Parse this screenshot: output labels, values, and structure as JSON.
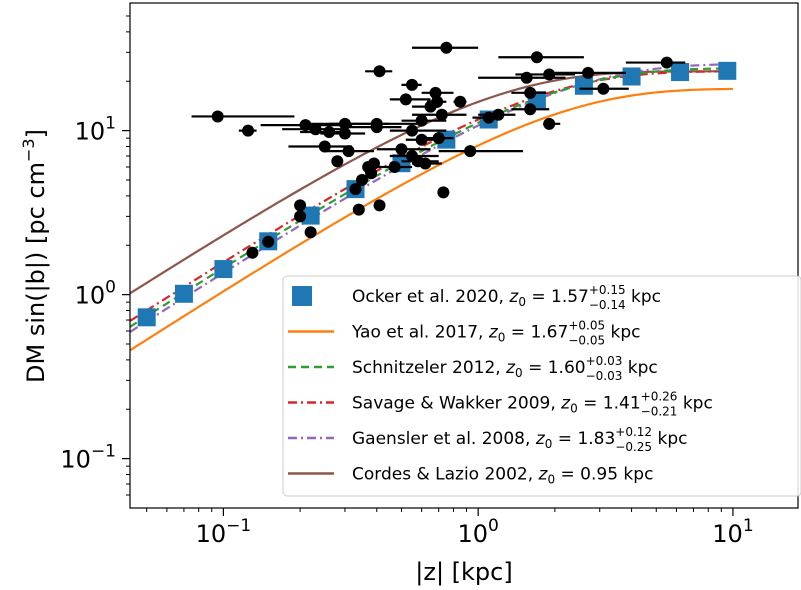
{
  "chart_data": {
    "type": "scatter",
    "title": "",
    "xlabel": "|z| [kpc]",
    "ylabel": "DM sin(|b|) [pc cm",
    "ylabel_sup": "−3",
    "ylabel_close": "]",
    "xscale": "log",
    "yscale": "log",
    "xlim": [
      0.043,
      18
    ],
    "ylim": [
      0.05,
      60
    ],
    "x_ticks": [
      {
        "value": 0.1,
        "base": "10",
        "exp": "−1"
      },
      {
        "value": 1,
        "base": "10",
        "exp": "0"
      },
      {
        "value": 10,
        "base": "10",
        "exp": "1"
      }
    ],
    "y_ticks": [
      {
        "value": 0.1,
        "base": "10",
        "exp": "−1"
      },
      {
        "value": 1,
        "base": "10",
        "exp": "0"
      },
      {
        "value": 10,
        "base": "10",
        "exp": "1"
      }
    ],
    "grid": false,
    "legend_position": "lower-right",
    "colors": {
      "data_points": "#000000",
      "ocker": "#1f77b4",
      "yao": "#ff7f0e",
      "schnitzeler": "#2ca02c",
      "savage": "#d62728",
      "gaensler": "#9467bd",
      "cordes": "#8c564b"
    },
    "series": [
      {
        "key": "ocker",
        "style": "squares",
        "name": "Ocker et al. 2020, ",
        "z0_value": "1.57",
        "sup": "+0.15",
        "sub": "−0.14",
        "unit": " kpc",
        "amplitude": 23.2,
        "z0": 1.57,
        "x_points": [
          0.05,
          0.07,
          0.1,
          0.15,
          0.22,
          0.33,
          0.5,
          0.75,
          1.1,
          1.7,
          2.6,
          4.0,
          6.2,
          9.5
        ]
      },
      {
        "key": "yao",
        "style": "solid",
        "name": "Yao et al. 2017, ",
        "z0_value": "1.67",
        "sup": "+0.05",
        "sub": "−0.05",
        "unit": " kpc",
        "amplitude": 18.0,
        "z0": 1.67
      },
      {
        "key": "schnitzeler",
        "style": "dashed",
        "name": "Schnitzeler 2012, ",
        "z0_value": "1.60",
        "sup": "+0.03",
        "sub": "−0.03",
        "unit": " kpc",
        "amplitude": 24.0,
        "z0": 1.6
      },
      {
        "key": "savage",
        "style": "dashdot",
        "name": "Savage & Wakker 2009, ",
        "z0_value": "1.41",
        "sup": "+0.26",
        "sub": "−0.21",
        "unit": " kpc",
        "amplitude": 23.0,
        "z0": 1.41
      },
      {
        "key": "gaensler",
        "style": "dashdot",
        "name": "Gaensler et al. 2008, ",
        "z0_value": "1.83",
        "sup": "+0.12",
        "sub": "−0.25",
        "unit": " kpc",
        "amplitude": 25.5,
        "z0": 1.83
      },
      {
        "key": "cordes",
        "style": "solid",
        "name": "Cordes & Lazio 2002, ",
        "z0_value": "0.95",
        "sup": "",
        "sub": "",
        "unit": " kpc",
        "amplitude": 23.0,
        "z0": 0.95
      }
    ],
    "data_points": [
      {
        "x": 0.095,
        "y": 12.2,
        "xerr": [
          0.075,
          0.19
        ]
      },
      {
        "x": 0.125,
        "y": 10.0,
        "xerr": [
          0.115,
          0.135
        ]
      },
      {
        "x": 0.21,
        "y": 10.8,
        "xerr": [
          0.14,
          0.32
        ]
      },
      {
        "x": 0.23,
        "y": 10.2,
        "xerr": [
          0.17,
          0.3
        ]
      },
      {
        "x": 0.25,
        "y": 8.0,
        "xerr": [
          0.18,
          0.32
        ]
      },
      {
        "x": 0.26,
        "y": 9.8,
        "xerr": [
          0.2,
          0.3
        ]
      },
      {
        "x": 0.3,
        "y": 11.0,
        "xerr": [
          0.22,
          0.45
        ]
      },
      {
        "x": 0.3,
        "y": 9.6,
        "xerr": [
          0.24,
          0.36
        ]
      },
      {
        "x": 0.31,
        "y": 7.5,
        "xerr": [
          0.25,
          0.39
        ]
      },
      {
        "x": 0.4,
        "y": 11.0,
        "xerr": [
          0.26,
          0.6
        ]
      },
      {
        "x": 0.4,
        "y": 10.5,
        "xerr": [
          0.3,
          0.5
        ]
      },
      {
        "x": 0.28,
        "y": 6.5
      },
      {
        "x": 0.37,
        "y": 6.0
      },
      {
        "x": 0.39,
        "y": 6.3
      },
      {
        "x": 0.38,
        "y": 5.5
      },
      {
        "x": 0.35,
        "y": 5.0
      },
      {
        "x": 0.33,
        "y": 4.4
      },
      {
        "x": 0.34,
        "y": 3.3
      },
      {
        "x": 0.41,
        "y": 3.5
      },
      {
        "x": 0.2,
        "y": 3.5
      },
      {
        "x": 0.2,
        "y": 3.0
      },
      {
        "x": 0.22,
        "y": 2.4
      },
      {
        "x": 0.15,
        "y": 2.1
      },
      {
        "x": 0.13,
        "y": 1.8
      },
      {
        "x": 0.41,
        "y": 23.0,
        "xerr": [
          0.36,
          0.46
        ]
      },
      {
        "x": 0.75,
        "y": 32.0,
        "xerr": [
          0.55,
          1.0
        ]
      },
      {
        "x": 0.55,
        "y": 19.0,
        "xerr": [
          0.5,
          0.6
        ]
      },
      {
        "x": 0.68,
        "y": 17.0,
        "xerr": [
          0.6,
          0.8
        ]
      },
      {
        "x": 0.52,
        "y": 15.5,
        "xerr": [
          0.45,
          0.65
        ]
      },
      {
        "x": 0.69,
        "y": 15.0,
        "xerr": [
          0.63,
          0.75
        ]
      },
      {
        "x": 0.85,
        "y": 15.0,
        "xerr": [
          0.8,
          0.9
        ]
      },
      {
        "x": 0.65,
        "y": 14.0,
        "xerr": [
          0.55,
          0.7
        ]
      },
      {
        "x": 0.72,
        "y": 12.5,
        "xerr": [
          0.55,
          0.9
        ]
      },
      {
        "x": 0.6,
        "y": 11.5,
        "xerr": [
          0.5,
          0.75
        ]
      },
      {
        "x": 0.55,
        "y": 10.0,
        "xerr": [
          0.45,
          0.75
        ]
      },
      {
        "x": 0.6,
        "y": 8.8,
        "xerr": [
          0.52,
          0.7
        ]
      },
      {
        "x": 0.7,
        "y": 9.0,
        "xerr": [
          0.6,
          0.8
        ]
      },
      {
        "x": 0.5,
        "y": 7.7,
        "xerr": [
          0.4,
          0.65
        ]
      },
      {
        "x": 0.55,
        "y": 7.0,
        "xerr": [
          0.45,
          0.7
        ]
      },
      {
        "x": 0.58,
        "y": 6.5,
        "xerr": [
          0.5,
          0.7
        ]
      },
      {
        "x": 0.62,
        "y": 6.3,
        "xerr": [
          0.55,
          0.72
        ]
      },
      {
        "x": 0.47,
        "y": 6.0,
        "xerr": [
          0.4,
          0.55
        ]
      },
      {
        "x": 0.93,
        "y": 7.5,
        "xerr": [
          0.7,
          1.5
        ]
      },
      {
        "x": 0.73,
        "y": 4.2,
        "xerr": [
          0.7,
          0.77
        ]
      },
      {
        "x": 1.1,
        "y": 12.0,
        "xerr": [
          0.95,
          1.25
        ]
      },
      {
        "x": 1.2,
        "y": 12.5,
        "xerr": [
          1.0,
          1.4
        ]
      },
      {
        "x": 1.7,
        "y": 28.0,
        "xerr": [
          1.2,
          2.6
        ]
      },
      {
        "x": 1.55,
        "y": 21.0,
        "xerr": [
          1.0,
          2.2
        ]
      },
      {
        "x": 1.6,
        "y": 17.0,
        "xerr": [
          1.35,
          1.85
        ]
      },
      {
        "x": 1.6,
        "y": 13.5,
        "xerr": [
          1.35,
          1.9
        ]
      },
      {
        "x": 1.9,
        "y": 22.0,
        "xerr": [
          1.4,
          2.4
        ]
      },
      {
        "x": 1.9,
        "y": 11.0,
        "xerr": [
          1.8,
          2.1
        ]
      },
      {
        "x": 2.7,
        "y": 22.5,
        "xerr": [
          2.0,
          3.8
        ]
      },
      {
        "x": 3.1,
        "y": 18.0,
        "xerr": [
          2.5,
          3.9
        ]
      },
      {
        "x": 5.5,
        "y": 26.0,
        "xerr": [
          3.8,
          6.5
        ]
      }
    ]
  }
}
